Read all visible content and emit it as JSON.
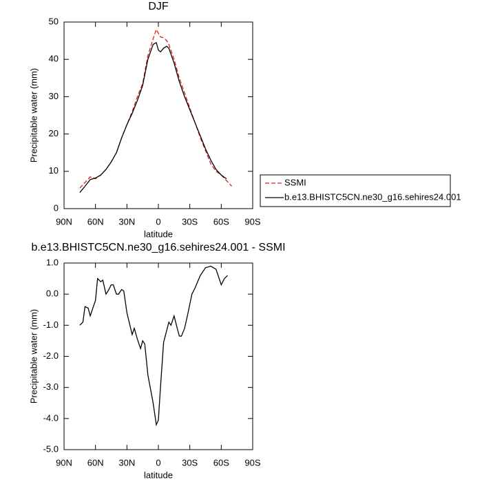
{
  "chart_data": [
    {
      "type": "line",
      "title": "DJF",
      "xlabel": "latitude",
      "ylabel": "Precipitable water (mm)",
      "x": [
        75,
        70,
        65,
        60,
        55,
        50,
        45,
        40,
        35,
        30,
        25,
        20,
        15,
        10,
        5,
        2,
        0,
        -2,
        -5,
        -8,
        -10,
        -15,
        -20,
        -25,
        -30,
        -35,
        -40,
        -45,
        -50,
        -55,
        -60,
        -65,
        -70
      ],
      "series": [
        {
          "name": "SSMI",
          "color": "#e41a1c",
          "dashed": true,
          "values": [
            5.5,
            7,
            8.5,
            8,
            9,
            10.5,
            12.5,
            15,
            19,
            22.5,
            26,
            30,
            33.5,
            41,
            45.5,
            48,
            47,
            46,
            45.8,
            45,
            44,
            40,
            35,
            31,
            27,
            23,
            19,
            15.5,
            12,
            10,
            9,
            7.5,
            6
          ]
        },
        {
          "name": "b.e13.BHISTC5CN.ne30_g16.sehires24.001",
          "color": "#000000",
          "dashed": false,
          "values": [
            4.3,
            6,
            7.8,
            8.2,
            9,
            10.5,
            12.5,
            15,
            19,
            22.5,
            25.5,
            29,
            33,
            40,
            44,
            44.5,
            42.5,
            42,
            43,
            43.5,
            43,
            39,
            34,
            30,
            26.5,
            23,
            19.5,
            16,
            13,
            10.5,
            9,
            8,
            null
          ]
        }
      ],
      "xlim": [
        90,
        -90
      ],
      "xticks": [
        {
          "value": 90,
          "label": "90N"
        },
        {
          "value": 60,
          "label": "60N"
        },
        {
          "value": 30,
          "label": "30N"
        },
        0,
        {
          "value": -30,
          "label": "30S"
        },
        {
          "value": -60,
          "label": "60S"
        },
        {
          "value": -90,
          "label": "90S"
        }
      ],
      "ylim": [
        0,
        50
      ],
      "yticks": [
        0,
        10,
        20,
        30,
        40,
        50
      ],
      "legend": "right"
    },
    {
      "type": "line",
      "title": "b.e13.BHISTC5CN.ne30_g16.sehires24.001 - SSMI",
      "xlabel": "latitude",
      "ylabel": "Precipitable water (mm)",
      "x": [
        75,
        72,
        70,
        67,
        65,
        62,
        60,
        58,
        55,
        53,
        50,
        48,
        45,
        43,
        40,
        38,
        35,
        33,
        30,
        25,
        23,
        20,
        17,
        15,
        13,
        10,
        5,
        2,
        0,
        -2,
        -5,
        -10,
        -12,
        -15,
        -18,
        -20,
        -22,
        -25,
        -28,
        -32,
        -35,
        -40,
        -45,
        -50,
        -55,
        -60,
        -63,
        -66
      ],
      "series": [
        {
          "name": null,
          "color": "#000000",
          "dashed": false,
          "values": [
            -1.0,
            -0.9,
            -0.4,
            -0.45,
            -0.7,
            -0.4,
            -0.2,
            0.5,
            0.4,
            0.45,
            0.0,
            0.1,
            0.3,
            0.3,
            0.0,
            0.0,
            0.15,
            0.1,
            -0.6,
            -1.3,
            -1.1,
            -1.45,
            -1.75,
            -1.5,
            -1.6,
            -2.6,
            -3.5,
            -4.2,
            -4.05,
            -3.0,
            -1.55,
            -0.9,
            -1.0,
            -0.7,
            -1.1,
            -1.35,
            -1.35,
            -1.1,
            -0.65,
            0.0,
            0.2,
            0.6,
            0.85,
            0.9,
            0.8,
            0.3,
            0.5,
            0.6
          ]
        }
      ],
      "xlim": [
        90,
        -90
      ],
      "xticks": [
        {
          "value": 90,
          "label": "90N"
        },
        {
          "value": 60,
          "label": "60N"
        },
        {
          "value": 30,
          "label": "30N"
        },
        0,
        {
          "value": -30,
          "label": "30S"
        },
        {
          "value": -60,
          "label": "60S"
        },
        {
          "value": -90,
          "label": "90S"
        }
      ],
      "ylim": [
        -5,
        1
      ],
      "yticks": [
        {
          "value": -5,
          "label": "-5.0"
        },
        {
          "value": -4,
          "label": "-4.0"
        },
        {
          "value": -3,
          "label": "-3.0"
        },
        {
          "value": -2,
          "label": "-2.0"
        },
        {
          "value": -1,
          "label": "-1.0"
        },
        {
          "value": 0,
          "label": "0.0"
        },
        {
          "value": 1,
          "label": "1.0"
        }
      ]
    }
  ]
}
